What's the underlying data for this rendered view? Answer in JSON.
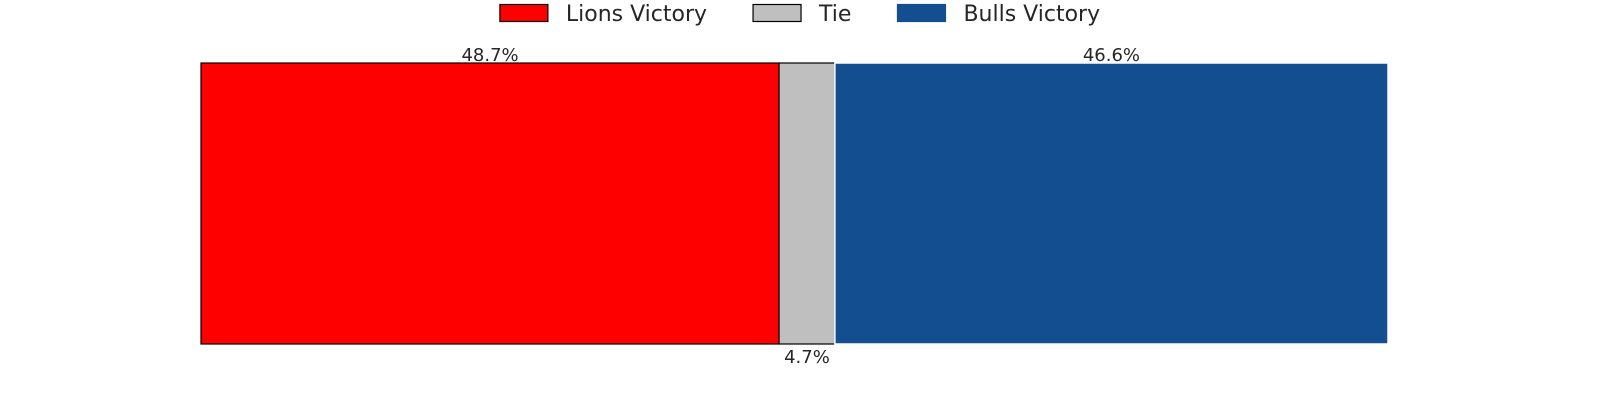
{
  "chart_data": {
    "type": "bar",
    "orientation": "horizontal-stacked",
    "unit": "%",
    "series": [
      {
        "name": "Lions Victory",
        "value": 48.7,
        "label": "48.7%",
        "color": "#ff0000",
        "label_position": "above"
      },
      {
        "name": "Tie",
        "value": 4.7,
        "label": "4.7%",
        "color": "#bfbfbf",
        "label_position": "below"
      },
      {
        "name": "Bulls Victory",
        "value": 46.6,
        "label": "46.6%",
        "color": "#134f90",
        "label_position": "above"
      }
    ],
    "legend": {
      "placement": "top-center",
      "entries": [
        "Lions Victory",
        "Tie",
        "Bulls Victory"
      ]
    },
    "grid": false,
    "axes_visible": false
  }
}
